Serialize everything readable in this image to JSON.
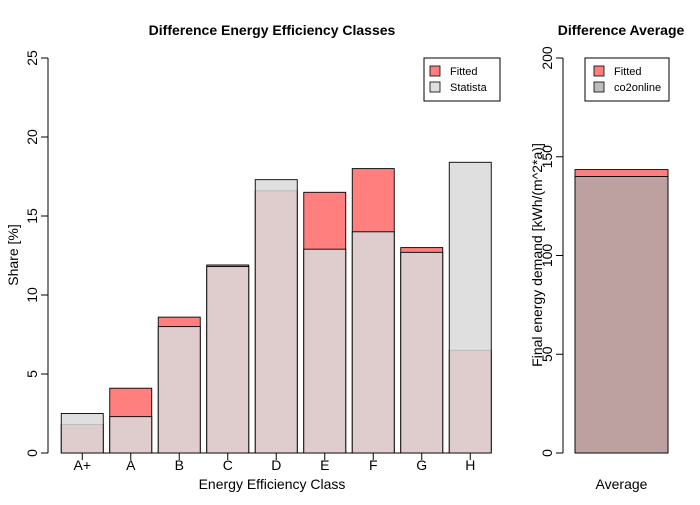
{
  "chart_data": [
    {
      "type": "bar",
      "title": "Difference Energy Efficiency Classes",
      "xlabel": "Energy Efficiency Class",
      "ylabel": "Share [%]",
      "categories": [
        "A+",
        "A",
        "B",
        "C",
        "D",
        "E",
        "F",
        "G",
        "H"
      ],
      "ylim": [
        0,
        25
      ],
      "yticks": [
        "0",
        "5",
        "10",
        "15",
        "20",
        "25"
      ],
      "grid": false,
      "legend_position": "top-right",
      "series": [
        {
          "name": "Fitted",
          "color": "#ff7f7f",
          "values": [
            1.8,
            4.1,
            8.6,
            11.9,
            16.6,
            16.5,
            18.0,
            13.0,
            6.5
          ]
        },
        {
          "name": "Statista",
          "color": "#d9d9d9",
          "values": [
            2.5,
            2.3,
            8.0,
            11.8,
            17.3,
            12.9,
            14.0,
            12.7,
            18.4
          ]
        }
      ]
    },
    {
      "type": "bar",
      "title": "Difference Average",
      "xlabel": "",
      "ylabel": "Final energy demand [kWh/(m^2*a)]",
      "categories": [
        "Average"
      ],
      "ylim": [
        0,
        200
      ],
      "yticks": [
        "0",
        "50",
        "100",
        "150",
        "200"
      ],
      "grid": false,
      "legend_position": "top-right",
      "series": [
        {
          "name": "Fitted",
          "color": "#ff7f7f",
          "values": [
            143.5
          ]
        },
        {
          "name": "co2online",
          "color": "#aaaaaa",
          "values": [
            140
          ]
        }
      ]
    }
  ]
}
